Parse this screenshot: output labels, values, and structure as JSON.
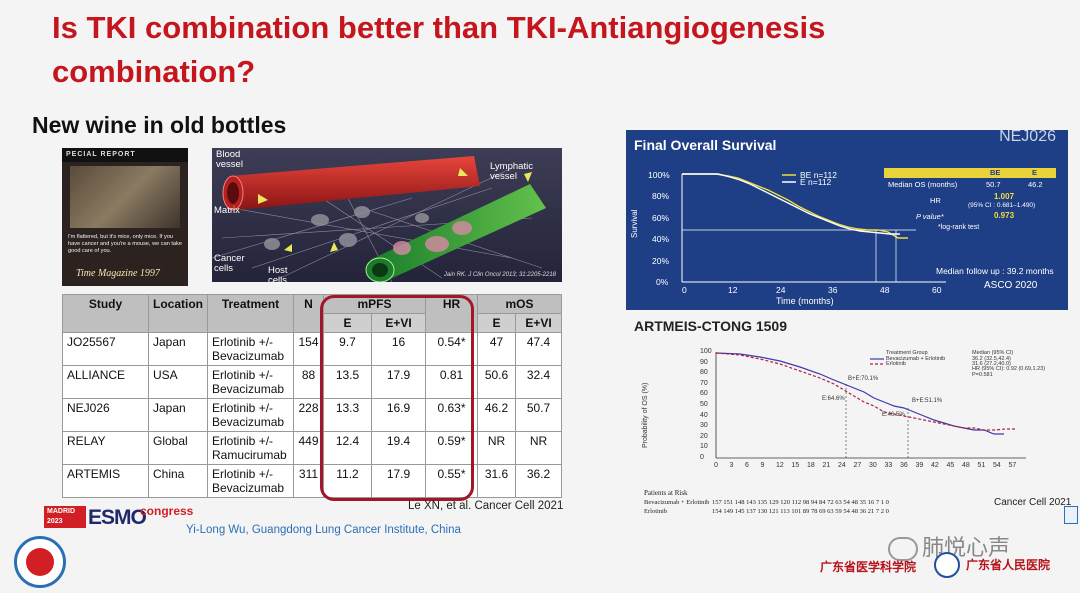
{
  "slide": {
    "title": "Is TKI combination better than TKI-Antiangiogenesis combination?",
    "subtitle": "New wine in old bottles"
  },
  "magazine": {
    "band": "PECIAL REPORT",
    "quote": "I'm flattered, but it's mice, only mice. If you have cancer and you're a mouse, we can take good care of you.",
    "caption": "Time Magazine 1997"
  },
  "vessel_figure": {
    "labels": {
      "blood": "Blood\nvessel",
      "lymph": "Lymphatic\nvessel",
      "matrix": "Matrix",
      "cancer": "Cancer\ncells",
      "host": "Host\ncells"
    },
    "ref": "Jain RK. J Clin Oncol 2013; 31:2205-2218"
  },
  "table": {
    "headers": {
      "study": "Study",
      "location": "Location",
      "treatment": "Treatment",
      "n": "N",
      "mpfs": "mPFS",
      "hr": "HR",
      "mos": "mOS",
      "e": "E",
      "evi": "E+VI"
    },
    "rows": [
      {
        "study": "JO25567",
        "location": "Japan",
        "treatment": "Erlotinib +/- Bevacizumab",
        "n": "154",
        "pfs_e": "9.7",
        "pfs_evi": "16",
        "hr": "0.54*",
        "os_e": "47",
        "os_evi": "47.4"
      },
      {
        "study": "ALLIANCE",
        "location": "USA",
        "treatment": "Erlotinib +/- Bevacizumab",
        "n": "88",
        "pfs_e": "13.5",
        "pfs_evi": "17.9",
        "hr": "0.81",
        "os_e": "50.6",
        "os_evi": "32.4"
      },
      {
        "study": "NEJ026",
        "location": "Japan",
        "treatment": "Erlotinib +/- Bevacizumab",
        "n": "228",
        "pfs_e": "13.3",
        "pfs_evi": "16.9",
        "hr": "0.63*",
        "os_e": "46.2",
        "os_evi": "50.7"
      },
      {
        "study": "RELAY",
        "location": "Global",
        "treatment": "Erlotinib +/- Ramucirumab",
        "n": "449",
        "pfs_e": "12.4",
        "pfs_evi": "19.4",
        "hr": "0.59*",
        "os_e": "NR",
        "os_evi": "NR"
      },
      {
        "study": "ARTEMIS",
        "location": "China",
        "treatment": "Erlotinib +/- Bevacizumab",
        "n": "311",
        "pfs_e": "11.2",
        "pfs_evi": "17.9",
        "hr": "0.55*",
        "os_e": "31.6",
        "os_evi": "36.2"
      }
    ],
    "citation": "Le XN, et al. Cancer Cell 2021"
  },
  "footer": {
    "affiliation": "Yi-Long Wu, Guangdong Lung Cancer Institute, China",
    "esmo_city": "MADRID 2023",
    "esmo_word": "ESMO",
    "esmo_congress": "congress",
    "wechat": "肺悦心声",
    "academy": "广东省医学科学院",
    "hospital": "广东省人民医院"
  },
  "nej026": {
    "title": "Final Overall Survival",
    "badge": "NEJ026",
    "legend": [
      "BE  n=112",
      "E    n=112"
    ],
    "box": {
      "col_be": "BE",
      "col_e": "E",
      "median_label": "Median OS (months)",
      "median_be": "50.7",
      "median_e": "46.2",
      "hr_label": "HR",
      "hr_value": "1.007",
      "ci": "(95% CI : 0.681–1.490)",
      "p_label": "P value*",
      "p_value": "0.973",
      "test": "*log-rank test"
    },
    "followup": "Median follow up : 39.2 months",
    "source": "ASCO 2020",
    "ylabel": "Survival",
    "xlabel": "Time (months)",
    "yticks": [
      "100%",
      "80%",
      "60%",
      "40%",
      "20%",
      "0%"
    ],
    "xticks": [
      "0",
      "12",
      "24",
      "36",
      "48",
      "60"
    ]
  },
  "artemis": {
    "title": "ARTMEIS-CTONG 1509",
    "ylabel": "Probability of OS (%)",
    "yticks": [
      "100",
      "90",
      "80",
      "70",
      "60",
      "50",
      "40",
      "30",
      "20",
      "10",
      "0"
    ],
    "xticks": [
      "0",
      "3",
      "6",
      "9",
      "12",
      "15",
      "18",
      "21",
      "24",
      "27",
      "30",
      "33",
      "36",
      "39",
      "42",
      "45",
      "48",
      "51",
      "54",
      "57"
    ],
    "legend": {
      "head": "Treatment Group",
      "median_head": "Median (95% CI)",
      "be": "Bevacizumab + Erlotinib",
      "be_val": "36.2 (32.5,42.4)",
      "e": "Erlotinib",
      "e_val": "31.6 (27.2,40.0)",
      "hr": "HR (95% CI): 0.92 (0.69,1.23)",
      "p": "P=0.581"
    },
    "annotations": [
      "B+E:70.1%",
      "E:64.6%",
      "B+E:51.1%",
      "E:46.5%"
    ],
    "risk_head": "Patients at Risk",
    "risk_be_label": "Bevacizumab + Erlotinib",
    "risk_be": "157  151  148  143  135  129  120  112   98   94   84   72   63   54   48   35   16    7    1    0",
    "risk_e_label": "Erlotinib",
    "risk_e": "154  149  145  137  130  121  113  101   89   78   69   63   59   54   48   36   21    7    2    0",
    "cite": "Cancer Cell 2021"
  }
}
